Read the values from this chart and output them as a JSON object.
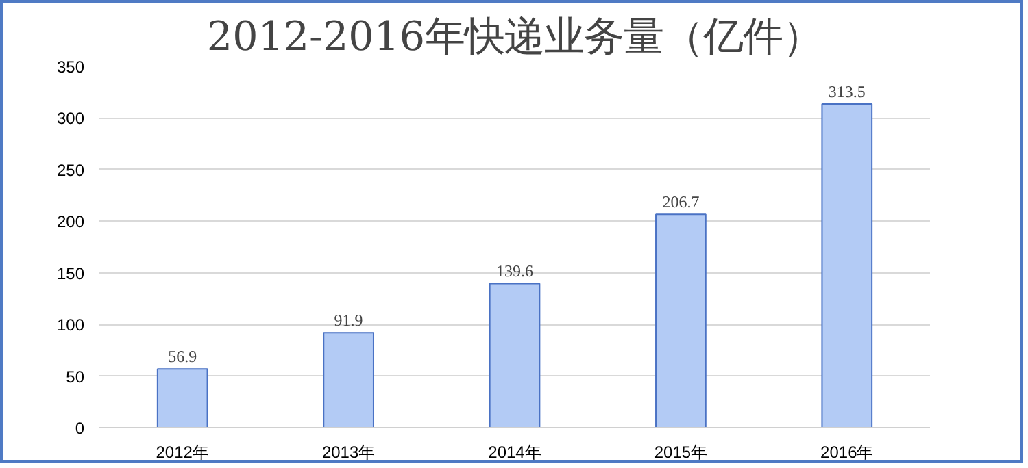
{
  "chart_data": {
    "type": "bar",
    "title": "2012-2016年快递业务量（亿件）",
    "categories": [
      "2012年",
      "2013年",
      "2014年",
      "2015年",
      "2016年"
    ],
    "values": [
      56.9,
      91.9,
      139.6,
      206.7,
      313.5
    ],
    "color": "#b3cbf5",
    "ylim": [
      0,
      350
    ],
    "yticks": [
      0,
      50,
      100,
      150,
      200,
      250,
      300,
      350
    ],
    "grid": "y",
    "data_labels": true
  }
}
